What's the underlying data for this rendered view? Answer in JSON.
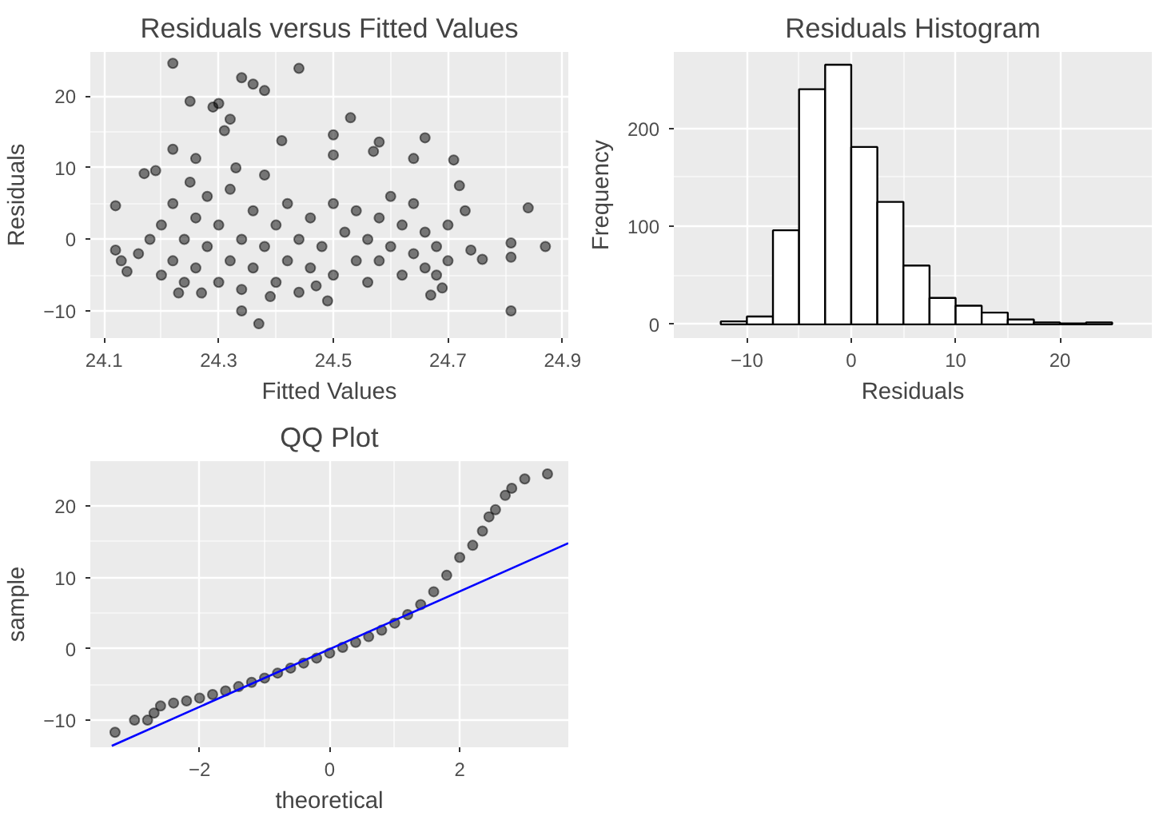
{
  "chart_data": [
    {
      "type": "scatter",
      "title": "Residuals versus Fitted Values",
      "xlabel": "Fitted Values",
      "ylabel": "Residuals",
      "xlim": [
        24.076,
        24.91
      ],
      "ylim": [
        -13.8,
        26.2
      ],
      "xticks": [
        24.1,
        24.3,
        24.5,
        24.7,
        24.9
      ],
      "yticks": [
        -10,
        0,
        10,
        20
      ],
      "grid": true,
      "marker": "circle",
      "series": [
        {
          "color": "#000000",
          "x": [
            24.22,
            24.44,
            24.34,
            24.36,
            24.38,
            24.25,
            24.29,
            24.3,
            24.53,
            24.31,
            24.32,
            24.66,
            24.58,
            24.5,
            24.41,
            24.22,
            24.26,
            24.17,
            24.19,
            24.5,
            24.71,
            24.64,
            24.57,
            24.84,
            24.87,
            24.81,
            24.81,
            24.81,
            24.34,
            24.37,
            24.12,
            24.12,
            24.13,
            24.14,
            24.76,
            24.74,
            24.73,
            24.72,
            24.49,
            24.27,
            24.23,
            24.44,
            24.67,
            24.69,
            24.2,
            24.2,
            24.22,
            24.22,
            24.24,
            24.24,
            24.26,
            24.26,
            24.28,
            24.28,
            24.3,
            24.3,
            24.32,
            24.32,
            24.34,
            24.34,
            24.36,
            24.36,
            24.38,
            24.38,
            24.4,
            24.4,
            24.42,
            24.42,
            24.44,
            24.46,
            24.46,
            24.48,
            24.5,
            24.5,
            24.52,
            24.54,
            24.54,
            24.56,
            24.56,
            24.58,
            24.58,
            24.6,
            24.6,
            24.62,
            24.62,
            24.64,
            24.64,
            24.66,
            24.66,
            24.68,
            24.68,
            24.7,
            24.7,
            24.18,
            24.16,
            24.25,
            24.33,
            24.39,
            24.47
          ],
          "values": [
            24.6,
            23.9,
            22.6,
            21.7,
            20.8,
            19.3,
            18.5,
            19,
            17,
            15.2,
            16.8,
            14.2,
            13.6,
            14.6,
            13.8,
            12.6,
            11.3,
            9.2,
            9.6,
            11.8,
            11.1,
            11.3,
            12.3,
            4.4,
            -1,
            -0.5,
            -2.5,
            -10,
            -10,
            -11.8,
            4.7,
            -1.5,
            -3,
            -4.5,
            -2.8,
            -1.5,
            4,
            7.5,
            -8.6,
            -7.5,
            -7.5,
            -7.4,
            -7.8,
            -6.8,
            -5,
            2,
            -3,
            5,
            0,
            -6,
            3,
            -4,
            -1,
            6,
            -6,
            2,
            -3,
            7,
            0,
            -7,
            4,
            -4,
            -1,
            9,
            -6,
            2,
            -3,
            5,
            0,
            -4,
            3,
            -1,
            -5,
            5,
            1,
            -3,
            4,
            -6,
            0,
            3,
            -3,
            -1,
            6,
            -5,
            2,
            -2,
            5,
            -4,
            1,
            -1,
            -5,
            2,
            -3,
            0,
            -2,
            8,
            10,
            -8,
            -6.5
          ]
        }
      ]
    },
    {
      "type": "histogram",
      "title": "Residuals Histogram",
      "xlabel": "Residuals",
      "ylabel": "Frequency",
      "xlim": [
        -17,
        28.8
      ],
      "ylim": [
        -14,
        278
      ],
      "xticks": [
        -10,
        0,
        10,
        20
      ],
      "yticks": [
        0,
        100,
        200
      ],
      "grid": true,
      "color": "#ffffff",
      "bins": [
        -12.5,
        -10,
        -7.5,
        -5,
        -2.5,
        0,
        2.5,
        5,
        7.5,
        10,
        12.5,
        15,
        17.5,
        20,
        22.5,
        25
      ],
      "values": [
        3,
        8,
        96,
        240,
        265,
        181,
        125,
        60,
        27,
        19,
        12,
        5,
        2,
        1,
        2
      ]
    },
    {
      "type": "scatter",
      "title": "QQ Plot",
      "xlabel": "theoretical",
      "ylabel": "sample",
      "xlim": [
        -3.68,
        3.67
      ],
      "ylim": [
        -13.8,
        26.3
      ],
      "xticks": [
        -2,
        0,
        2
      ],
      "yticks": [
        -10,
        0,
        10,
        20
      ],
      "grid": true,
      "series": [
        {
          "type": "scatter",
          "marker": "circle",
          "color": "#000000",
          "x": [
            -3.3,
            -3.0,
            -2.8,
            -2.7,
            -2.6,
            -2.4,
            -2.2,
            -2.0,
            -1.8,
            -1.6,
            -1.4,
            -1.2,
            -1.0,
            -0.8,
            -0.6,
            -0.4,
            -0.2,
            0,
            0.2,
            0.4,
            0.6,
            0.8,
            1.0,
            1.2,
            1.4,
            1.6,
            1.8,
            2.0,
            2.2,
            2.35,
            2.45,
            2.55,
            2.7,
            2.8,
            3.0,
            3.35
          ],
          "values": [
            -11.7,
            -10,
            -10,
            -9,
            -8,
            -7.6,
            -7.3,
            -6.9,
            -6.4,
            -5.9,
            -5.3,
            -4.7,
            -4.1,
            -3.4,
            -2.7,
            -2.0,
            -1.3,
            -0.6,
            0.2,
            0.9,
            1.7,
            2.6,
            3.6,
            4.8,
            6.2,
            8.0,
            10.3,
            12.8,
            14.5,
            16.5,
            18.5,
            19.5,
            21.5,
            22.5,
            23.8,
            24.5
          ]
        },
        {
          "type": "line",
          "color": "#0000ff",
          "x": [
            -3.35,
            3.67
          ],
          "values": [
            -13.6,
            14.8
          ]
        }
      ]
    }
  ]
}
